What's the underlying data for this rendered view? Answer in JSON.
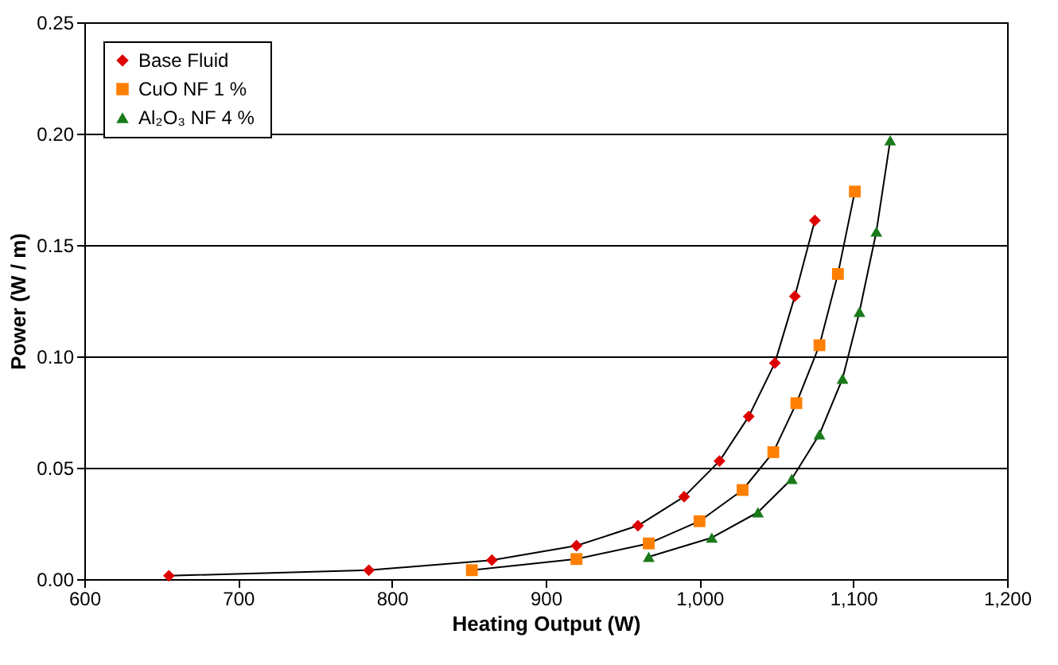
{
  "chart_data": {
    "type": "line",
    "xlabel": "Heating Output (W)",
    "ylabel": "Power (W / m)",
    "xlim": [
      600,
      1200
    ],
    "ylim": [
      0,
      0.25
    ],
    "xticks": [
      600,
      700,
      800,
      900,
      {
        "value": 1000,
        "label": "1,000"
      },
      {
        "value": 1100,
        "label": "1,100"
      },
      {
        "value": 1200,
        "label": "1,200"
      }
    ],
    "yticks": [
      {
        "value": 0,
        "label": "0.00"
      },
      {
        "value": 0.05,
        "label": "0.05"
      },
      {
        "value": 0.1,
        "label": "0.10"
      },
      {
        "value": 0.15,
        "label": "0.15"
      },
      {
        "value": 0.2,
        "label": "0.20"
      },
      {
        "value": 0.25,
        "label": "0.25"
      }
    ],
    "grid": "y",
    "legend": "top left",
    "line_style": "solid",
    "series": [
      {
        "name": "Base Fluid",
        "color": "#dd0000",
        "marker": "diamond",
        "x": [
          655,
          785,
          865,
          920,
          960,
          990,
          1013,
          1032,
          1049,
          1062,
          1075
        ],
        "values": [
          0.0015,
          0.004,
          0.0085,
          0.015,
          0.024,
          0.037,
          0.053,
          0.073,
          0.097,
          0.127,
          0.161
        ]
      },
      {
        "name": "CuO NF 1 %",
        "color": "#ff7f00",
        "marker": "square",
        "x": [
          852,
          920,
          967,
          1000,
          1028,
          1048,
          1063,
          1078,
          1090,
          1101
        ],
        "values": [
          0.004,
          0.009,
          0.016,
          0.026,
          0.04,
          0.057,
          0.079,
          0.105,
          0.137,
          0.174
        ]
      },
      {
        "name": "Al₂O₃ NF  4 %",
        "color": "#1a7a1a",
        "marker": "triangle",
        "x": [
          967,
          1008,
          1038,
          1060,
          1078,
          1093,
          1104,
          1115,
          1124
        ],
        "values": [
          0.01,
          0.0186,
          0.03,
          0.045,
          0.065,
          0.09,
          0.12,
          0.156,
          0.197
        ]
      }
    ]
  }
}
